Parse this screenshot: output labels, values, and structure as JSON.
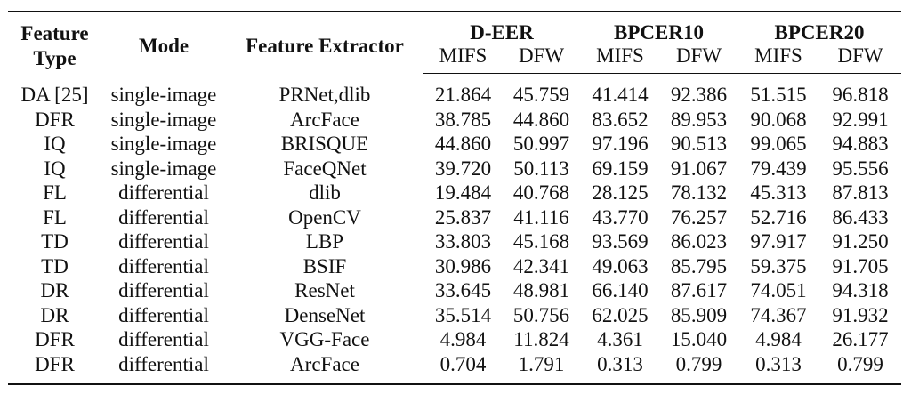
{
  "headers": {
    "feature_type_line1": "Feature",
    "feature_type_line2": "Type",
    "mode": "Mode",
    "feature_extractor": "Feature Extractor",
    "groups": [
      "D-EER",
      "BPCER10",
      "BPCER20"
    ],
    "subheaders": [
      "MIFS",
      "DFW",
      "MIFS",
      "DFW",
      "MIFS",
      "DFW"
    ]
  },
  "rows": [
    {
      "type": "DA [25]",
      "mode": "single-image",
      "extractor": "PRNet,dlib",
      "values": [
        "21.864",
        "45.759",
        "41.414",
        "92.386",
        "51.515",
        "96.818"
      ]
    },
    {
      "type": "DFR",
      "mode": "single-image",
      "extractor": "ArcFace",
      "values": [
        "38.785",
        "44.860",
        "83.652",
        "89.953",
        "90.068",
        "92.991"
      ]
    },
    {
      "type": "IQ",
      "mode": "single-image",
      "extractor": "BRISQUE",
      "values": [
        "44.860",
        "50.997",
        "97.196",
        "90.513",
        "99.065",
        "94.883"
      ]
    },
    {
      "type": "IQ",
      "mode": "single-image",
      "extractor": "FaceQNet",
      "values": [
        "39.720",
        "50.113",
        "69.159",
        "91.067",
        "79.439",
        "95.556"
      ]
    },
    {
      "type": "FL",
      "mode": "differential",
      "extractor": "dlib",
      "values": [
        "19.484",
        "40.768",
        "28.125",
        "78.132",
        "45.313",
        "87.813"
      ]
    },
    {
      "type": "FL",
      "mode": "differential",
      "extractor": "OpenCV",
      "values": [
        "25.837",
        "41.116",
        "43.770",
        "76.257",
        "52.716",
        "86.433"
      ]
    },
    {
      "type": "TD",
      "mode": "differential",
      "extractor": "LBP",
      "values": [
        "33.803",
        "45.168",
        "93.569",
        "86.023",
        "97.917",
        "91.250"
      ]
    },
    {
      "type": "TD",
      "mode": "differential",
      "extractor": "BSIF",
      "values": [
        "30.986",
        "42.341",
        "49.063",
        "85.795",
        "59.375",
        "91.705"
      ]
    },
    {
      "type": "DR",
      "mode": "differential",
      "extractor": "ResNet",
      "values": [
        "33.645",
        "48.981",
        "66.140",
        "87.617",
        "74.051",
        "94.318"
      ]
    },
    {
      "type": "DR",
      "mode": "differential",
      "extractor": "DenseNet",
      "values": [
        "35.514",
        "50.756",
        "62.025",
        "85.909",
        "74.367",
        "91.932"
      ]
    },
    {
      "type": "DFR",
      "mode": "differential",
      "extractor": "VGG-Face",
      "values": [
        "4.984",
        "11.824",
        "4.361",
        "15.040",
        "4.984",
        "26.177"
      ]
    },
    {
      "type": "DFR",
      "mode": "differential",
      "extractor": "ArcFace",
      "values": [
        "0.704",
        "1.791",
        "0.313",
        "0.799",
        "0.313",
        "0.799"
      ]
    }
  ]
}
